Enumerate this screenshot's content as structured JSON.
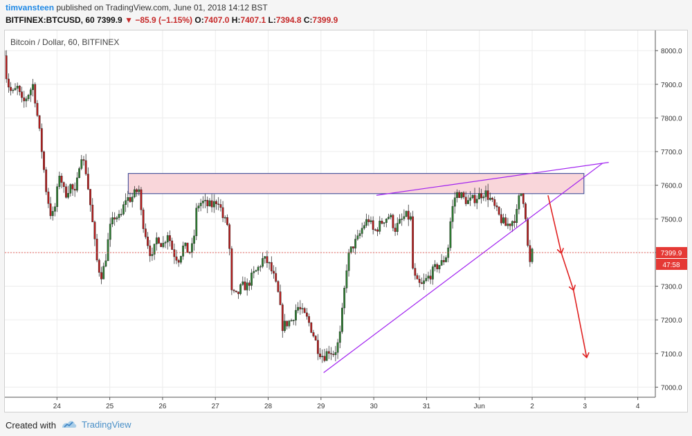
{
  "header": {
    "author": "timvansteen",
    "published_text": "published on TradingView.com, June 01, 2018 14:12 BST",
    "symbol": "BITFINEX:BTCUSD, 60",
    "last": "7399.9",
    "change": "−85.9 (−1.15%)",
    "o_label": "O:",
    "o_value": "7407.0",
    "h_label": "H:",
    "h_value": "7407.1",
    "l_label": "L:",
    "l_value": "7394.8",
    "c_label": "C:",
    "c_value": "7399.9"
  },
  "footer": {
    "created_with": "Created with",
    "brand": "TradingView"
  },
  "colors": {
    "up": "#2e7d32",
    "down": "#b71c1c",
    "resistance_fill": "#f9d6da",
    "resistance_border": "#2c3e90",
    "trendline": "#a020f0",
    "arrow": "#e02020",
    "price_line": "#e53935",
    "price_label_bg": "#e53935"
  },
  "chart_data": {
    "type": "candlestick",
    "title": "Bitcoin / Dollar, 60, BITFINEX",
    "x_ticks": [
      "24",
      "25",
      "26",
      "27",
      "28",
      "29",
      "30",
      "31",
      "Jun",
      "2",
      "3",
      "4"
    ],
    "y_ticks": [
      "8000.0",
      "7900.0",
      "7800.0",
      "7700.0",
      "7600.0",
      "7500.0",
      "7400.0",
      "7300.0",
      "7200.0",
      "7100.0",
      "7000.0"
    ],
    "ylim": [
      6970,
      8060
    ],
    "last_price_label": "7399.9",
    "countdown_label": "47:58",
    "last_price": 7399.9,
    "path_points": [
      [
        0.0,
        8000
      ],
      [
        0.05,
        7910
      ],
      [
        0.15,
        7870
      ],
      [
        0.25,
        7890
      ],
      [
        0.35,
        7840
      ],
      [
        0.45,
        7870
      ],
      [
        0.55,
        7900
      ],
      [
        0.7,
        7720
      ],
      [
        0.8,
        7580
      ],
      [
        0.9,
        7500
      ],
      [
        0.97,
        7540
      ],
      [
        1.05,
        7640
      ],
      [
        1.15,
        7570
      ],
      [
        1.25,
        7600
      ],
      [
        1.35,
        7570
      ],
      [
        1.45,
        7700
      ],
      [
        1.55,
        7640
      ],
      [
        1.65,
        7520
      ],
      [
        1.75,
        7380
      ],
      [
        1.83,
        7330
      ],
      [
        1.9,
        7360
      ],
      [
        2.0,
        7470
      ],
      [
        2.1,
        7510
      ],
      [
        2.2,
        7500
      ],
      [
        2.3,
        7560
      ],
      [
        2.4,
        7560
      ],
      [
        2.55,
        7590
      ],
      [
        2.6,
        7510
      ],
      [
        2.7,
        7440
      ],
      [
        2.8,
        7380
      ],
      [
        2.9,
        7450
      ],
      [
        3.0,
        7420
      ],
      [
        3.1,
        7460
      ],
      [
        3.2,
        7400
      ],
      [
        3.3,
        7380
      ],
      [
        3.4,
        7420
      ],
      [
        3.5,
        7400
      ],
      [
        3.58,
        7420
      ],
      [
        3.65,
        7540
      ],
      [
        3.75,
        7550
      ],
      [
        3.85,
        7540
      ],
      [
        3.95,
        7540
      ],
      [
        4.05,
        7560
      ],
      [
        4.15,
        7500
      ],
      [
        4.25,
        7480
      ],
      [
        4.3,
        7280
      ],
      [
        4.4,
        7270
      ],
      [
        4.5,
        7300
      ],
      [
        4.6,
        7300
      ],
      [
        4.7,
        7330
      ],
      [
        4.8,
        7350
      ],
      [
        4.9,
        7380
      ],
      [
        5.0,
        7370
      ],
      [
        5.1,
        7330
      ],
      [
        5.2,
        7270
      ],
      [
        5.27,
        7180
      ],
      [
        5.35,
        7190
      ],
      [
        5.45,
        7200
      ],
      [
        5.55,
        7240
      ],
      [
        5.65,
        7220
      ],
      [
        5.75,
        7200
      ],
      [
        5.85,
        7160
      ],
      [
        5.95,
        7110
      ],
      [
        6.05,
        7090
      ],
      [
        6.15,
        7110
      ],
      [
        6.25,
        7100
      ],
      [
        6.35,
        7140
      ],
      [
        6.42,
        7250
      ],
      [
        6.5,
        7380
      ],
      [
        6.6,
        7420
      ],
      [
        6.7,
        7440
      ],
      [
        6.8,
        7480
      ],
      [
        6.9,
        7500
      ],
      [
        7.0,
        7460
      ],
      [
        7.1,
        7480
      ],
      [
        7.2,
        7500
      ],
      [
        7.3,
        7510
      ],
      [
        7.4,
        7470
      ],
      [
        7.5,
        7490
      ],
      [
        7.6,
        7510
      ],
      [
        7.7,
        7500
      ],
      [
        7.73,
        7360
      ],
      [
        7.8,
        7310
      ],
      [
        7.9,
        7300
      ],
      [
        8.0,
        7320
      ],
      [
        8.1,
        7340
      ],
      [
        8.2,
        7360
      ],
      [
        8.3,
        7370
      ],
      [
        8.4,
        7400
      ],
      [
        8.45,
        7490
      ],
      [
        8.52,
        7560
      ],
      [
        8.6,
        7580
      ],
      [
        8.7,
        7560
      ],
      [
        8.8,
        7550
      ],
      [
        8.9,
        7560
      ],
      [
        9.0,
        7570
      ],
      [
        9.1,
        7580
      ],
      [
        9.2,
        7560
      ],
      [
        9.3,
        7530
      ],
      [
        9.4,
        7500
      ],
      [
        9.5,
        7480
      ],
      [
        9.6,
        7490
      ],
      [
        9.7,
        7510
      ],
      [
        9.75,
        7560
      ],
      [
        9.8,
        7580
      ],
      [
        9.83,
        7560
      ],
      [
        9.87,
        7520
      ],
      [
        9.9,
        7460
      ],
      [
        9.93,
        7380
      ],
      [
        9.97,
        7360
      ],
      [
        10.0,
        7400
      ]
    ],
    "resistance_zone": {
      "t_start": 2.35,
      "t_end": 10.98,
      "low": 7575,
      "high": 7635
    },
    "trendline_lower": {
      "from": [
        6.05,
        7043
      ],
      "to": [
        11.33,
        7665
      ]
    },
    "trendline_upper": {
      "from": [
        7.05,
        7570
      ],
      "to": [
        11.45,
        7668
      ]
    },
    "arrows": [
      {
        "from": [
          10.3,
          7570
        ],
        "to": [
          10.55,
          7400
        ]
      },
      {
        "from": [
          10.55,
          7400
        ],
        "to": [
          10.78,
          7290
        ]
      },
      {
        "from": [
          10.78,
          7290
        ],
        "to": [
          11.03,
          7090
        ]
      }
    ]
  }
}
